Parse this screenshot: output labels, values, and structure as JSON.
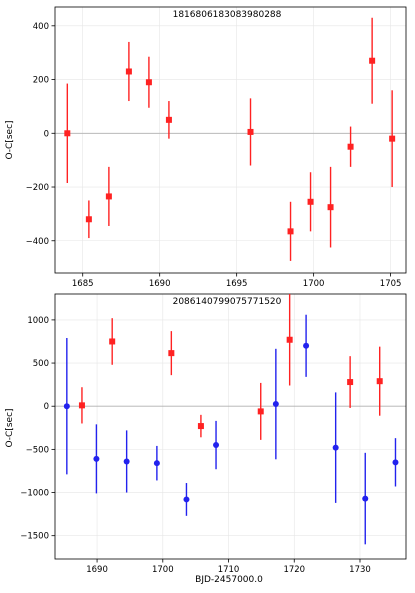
{
  "chart_data": [
    {
      "type": "scatter",
      "title": "1816806183083980288",
      "xlabel": "",
      "ylabel": "O-C[sec]",
      "xlim": [
        1683.2,
        1706.0
      ],
      "ylim": [
        -520,
        470
      ],
      "xticks": [
        1685,
        1690,
        1695,
        1700,
        1705
      ],
      "yticks": [
        -400,
        -200,
        0,
        200,
        400
      ],
      "grid": true,
      "zero_line": true,
      "series": [
        {
          "color": "#ff2222",
          "marker": "square",
          "points": [
            {
              "x": 1684.0,
              "y": 0,
              "err": 185
            },
            {
              "x": 1685.4,
              "y": -320,
              "err": 70
            },
            {
              "x": 1686.7,
              "y": -235,
              "err": 110
            },
            {
              "x": 1688.0,
              "y": 230,
              "err": 110
            },
            {
              "x": 1689.3,
              "y": 190,
              "err": 95
            },
            {
              "x": 1690.6,
              "y": 50,
              "err": 70
            },
            {
              "x": 1695.9,
              "y": 5,
              "err": 125
            },
            {
              "x": 1698.5,
              "y": -365,
              "err": 110
            },
            {
              "x": 1699.8,
              "y": -255,
              "err": 110
            },
            {
              "x": 1701.1,
              "y": -275,
              "err": 150
            },
            {
              "x": 1702.4,
              "y": -50,
              "err": 75
            },
            {
              "x": 1703.8,
              "y": 270,
              "err": 160
            },
            {
              "x": 1705.1,
              "y": -20,
              "err": 180
            }
          ]
        }
      ]
    },
    {
      "type": "scatter",
      "title": "2086140799075771520",
      "xlabel": "BJD-2457000.0",
      "ylabel": "O-C[sec]",
      "xlim": [
        1683.6,
        1737.0
      ],
      "ylim": [
        -1770,
        1300
      ],
      "xticks": [
        1690,
        1700,
        1710,
        1720,
        1730
      ],
      "yticks": [
        -1500,
        -1000,
        -500,
        0,
        500,
        1000
      ],
      "grid": true,
      "zero_line": true,
      "series": [
        {
          "color": "#ff2222",
          "marker": "square",
          "points": [
            {
              "x": 1687.7,
              "y": 10,
              "err": 210
            },
            {
              "x": 1692.3,
              "y": 750,
              "err": 270
            },
            {
              "x": 1701.3,
              "y": 615,
              "err": 255
            },
            {
              "x": 1705.8,
              "y": -230,
              "err": 130
            },
            {
              "x": 1714.9,
              "y": -60,
              "err": 330
            },
            {
              "x": 1719.3,
              "y": 770,
              "err": 530
            },
            {
              "x": 1728.5,
              "y": 280,
              "err": 300
            },
            {
              "x": 1733.0,
              "y": 290,
              "err": 400
            }
          ]
        },
        {
          "color": "#2222ee",
          "marker": "circle",
          "points": [
            {
              "x": 1685.4,
              "y": 0,
              "err": 790
            },
            {
              "x": 1689.9,
              "y": -610,
              "err": 400
            },
            {
              "x": 1694.5,
              "y": -640,
              "err": 360
            },
            {
              "x": 1699.1,
              "y": -660,
              "err": 200
            },
            {
              "x": 1703.6,
              "y": -1080,
              "err": 190
            },
            {
              "x": 1708.1,
              "y": -450,
              "err": 280
            },
            {
              "x": 1717.2,
              "y": 25,
              "err": 640
            },
            {
              "x": 1721.8,
              "y": 700,
              "err": 360
            },
            {
              "x": 1726.3,
              "y": -480,
              "err": 640
            },
            {
              "x": 1730.8,
              "y": -1070,
              "err": 530
            },
            {
              "x": 1735.4,
              "y": -650,
              "err": 280
            }
          ]
        }
      ]
    }
  ]
}
